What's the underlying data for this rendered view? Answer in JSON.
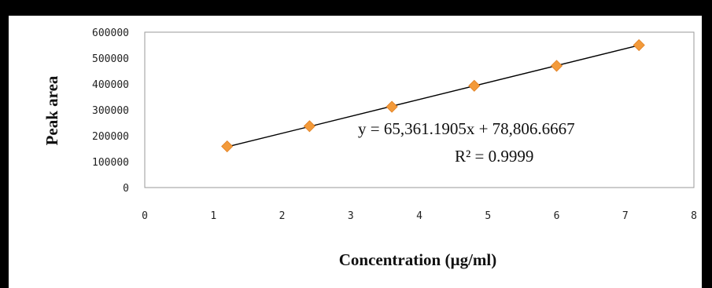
{
  "chart_data": {
    "type": "scatter",
    "x": [
      1.2,
      2.4,
      3.6,
      4.8,
      6.0,
      7.2
    ],
    "y": [
      159000,
      237000,
      312000,
      393000,
      470000,
      550000
    ],
    "trendline": {
      "equation": "y = 65,361.1905x + 78,806.6667",
      "r_squared": "R² = 0.9999",
      "slope": 65361.1905,
      "intercept": 78806.6667
    },
    "xlabel": "Concentration (µg/ml)",
    "ylabel": "Peak area",
    "xlim": [
      0,
      8
    ],
    "ylim": [
      0,
      600000
    ],
    "x_ticks": [
      "0",
      "1",
      "2",
      "3",
      "4",
      "5",
      "6",
      "7",
      "8"
    ],
    "y_ticks": [
      "0",
      "100000",
      "200000",
      "300000",
      "400000",
      "500000",
      "600000"
    ],
    "grid": false,
    "marker_color": "#F39A3A",
    "line_color": "#000000",
    "background_color": "#FFFFFF",
    "border_color": "#000000"
  }
}
